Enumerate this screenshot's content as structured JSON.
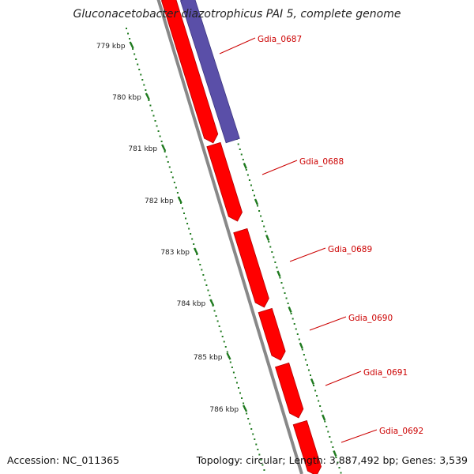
{
  "title": "Gluconacetobacter diazotrophicus PAI 5, complete genome",
  "footer": {
    "accession": "Accession: NC_011365",
    "summary": "Topology: circular; Length: 3,887,492 bp; Genes: 3,539"
  },
  "colors": {
    "forward_gene": "#ff0000",
    "reverse_gene": "#5a4fa8",
    "backbone": "#888888",
    "ruler": "#1f7a1f",
    "gene_label": "#cc0000"
  },
  "ruler_ticks": [
    {
      "label": "779 kbp"
    },
    {
      "label": "780 kbp"
    },
    {
      "label": "781 kbp"
    },
    {
      "label": "782 kbp"
    },
    {
      "label": "783 kbp"
    },
    {
      "label": "784 kbp"
    },
    {
      "label": "785 kbp"
    },
    {
      "label": "786 kbp"
    }
  ],
  "genes": [
    {
      "label": "Gdia_0687",
      "strand": "reverse"
    },
    {
      "label": "Gdia_0688",
      "strand": "forward"
    },
    {
      "label": "Gdia_0689",
      "strand": "forward"
    },
    {
      "label": "Gdia_0690",
      "strand": "forward"
    },
    {
      "label": "Gdia_0691",
      "strand": "forward"
    },
    {
      "label": "Gdia_0692",
      "strand": "forward"
    }
  ]
}
